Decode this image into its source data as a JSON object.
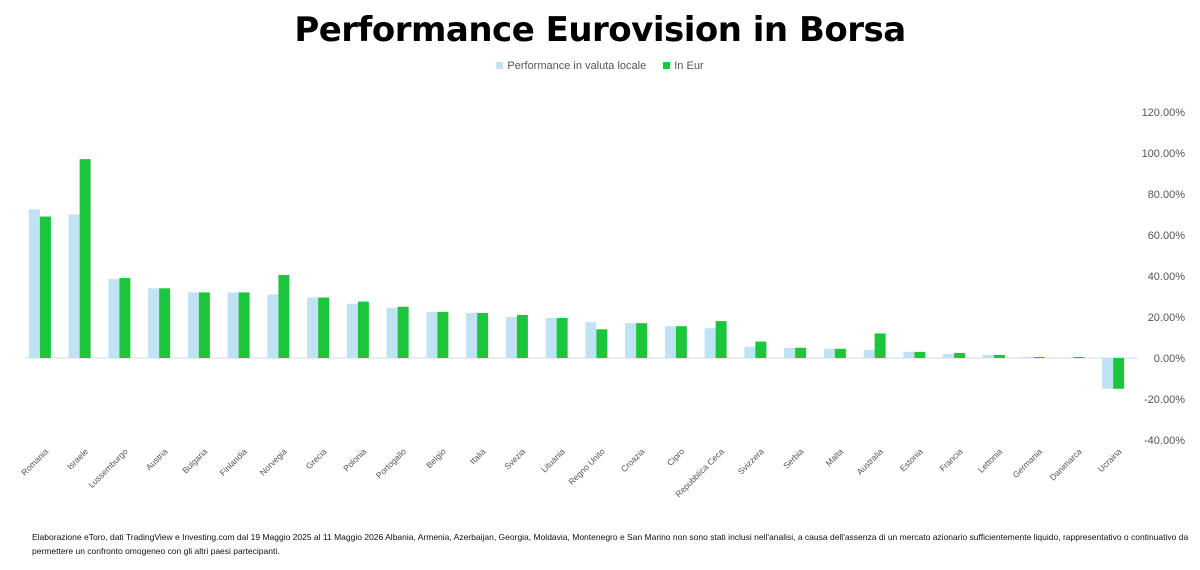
{
  "title": "Performance Eurovision in Borsa",
  "footnote": "Elaborazione eToro, dati TradingView e Investing.com dal 19 Maggio 2025 al 11 Maggio 2026 Albania, Armenia, Azerbaijan, Georgia, Moldavia, Montenegro e San Marino  non sono stati inclusi nell'analisi, a causa dell'assenza di un mercato azionario sufficientemente liquido, rappresentativo o continuativo da permettere un confronto omogeneo con gli altri paesi partecipanti.",
  "chart_data": {
    "type": "bar",
    "title": "Performance Eurovision in Borsa",
    "categories": [
      "Romania",
      "Israele",
      "Lussemburgo",
      "Austria",
      "Bulgaria",
      "Finlandia",
      "Norvegia",
      "Grecia",
      "Polonia",
      "Portogallo",
      "Belgio",
      "Italia",
      "Svezia",
      "Lituania",
      "Regno Unito",
      "Croazia",
      "Cipro",
      "Repubblica Ceca",
      "Svizzera",
      "Serbia",
      "Malta",
      "Australia",
      "Estonia",
      "Francia",
      "Lettonia",
      "Germania",
      "Danimarca",
      "Ucraina"
    ],
    "series": [
      {
        "name": "Performance in valuta locale",
        "color": "#bfe3f5",
        "values": [
          72.5,
          70,
          38.5,
          34,
          32,
          32,
          31,
          29.5,
          26.5,
          24.5,
          22.5,
          22,
          20,
          19.5,
          17.5,
          17,
          15.5,
          14.5,
          5.5,
          5,
          4.5,
          4,
          3,
          2,
          1.5,
          0.5,
          0.3,
          -15
        ]
      },
      {
        "name": "In Eur",
        "color": "#1bc63c",
        "values": [
          69,
          97,
          39,
          34,
          32,
          32,
          40.5,
          29.5,
          27.5,
          25,
          22.5,
          22,
          21,
          19.5,
          14,
          17,
          15.5,
          18,
          8,
          5,
          4.5,
          12,
          3,
          2.5,
          1.5,
          0.5,
          0.5,
          -15
        ]
      }
    ],
    "ylim": [
      -40,
      120
    ],
    "yticks": [
      "120.00%",
      "100.00%",
      "80.00%",
      "60.00%",
      "40.00%",
      "20.00%",
      "0.00%",
      "-20.00%",
      "-40.00%"
    ],
    "ytick_values": [
      120,
      100,
      80,
      60,
      40,
      20,
      0,
      -20,
      -40
    ],
    "grid": false,
    "legend_position": "top",
    "y_axis_side": "right"
  }
}
